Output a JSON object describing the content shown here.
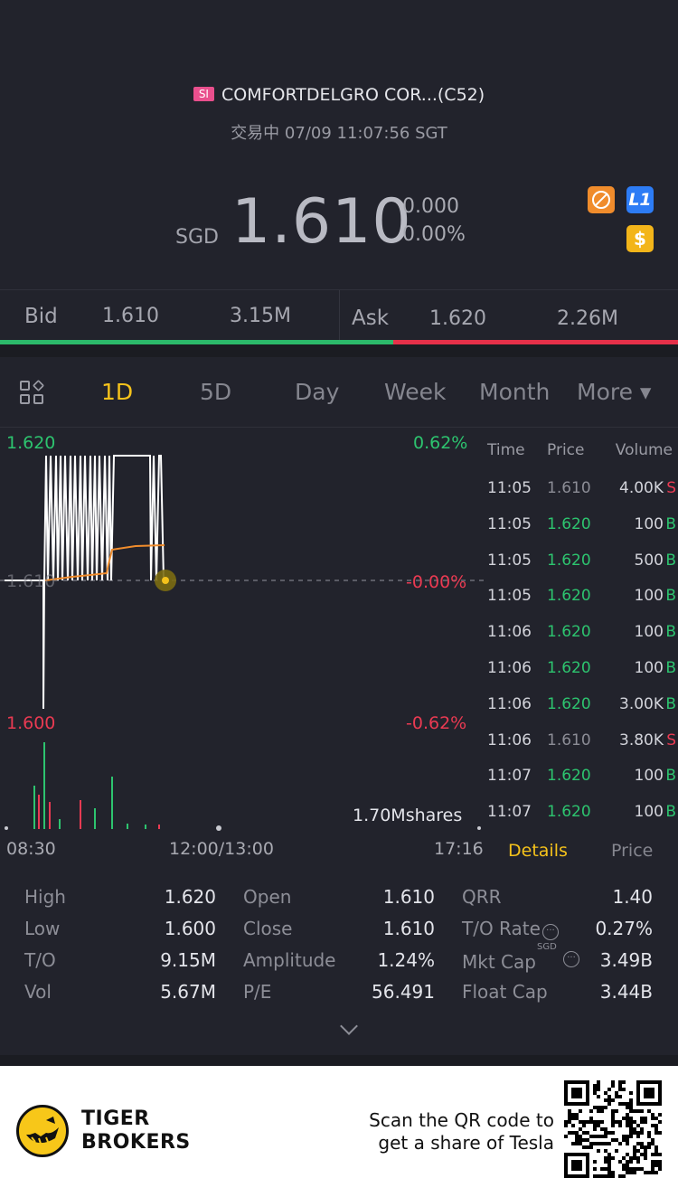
{
  "header": {
    "market_badge": "SI",
    "stock_title": "COMFORTDELGRO COR...(C52)",
    "status": "交易中 07/09 11:07:56 SGT",
    "currency": "SGD",
    "price": "1.610",
    "change": "0.000",
    "change_pct": "0.00%",
    "icons": [
      "no-shorting-icon",
      "level1-icon",
      "dollar-icon"
    ],
    "l1_label": "L1",
    "dollar_label": "$"
  },
  "bidask": {
    "bid_label": "Bid",
    "bid_price": "1.610",
    "bid_size": "3.15M",
    "ask_label": "Ask",
    "ask_price": "1.620",
    "ask_size": "2.26M",
    "bid_ratio": 0.58
  },
  "tabs": [
    "1D",
    "5D",
    "Day",
    "Week",
    "Month",
    "More ▾"
  ],
  "chart": {
    "high_price": "1.620",
    "high_pct": "0.62%",
    "mid_price": "1.610",
    "mid_pct": "-0.00%",
    "low_price": "1.600",
    "low_pct": "-0.62%",
    "volume_label": "1.70Mshares",
    "time_start": "08:30",
    "time_mid": "12:00/13:00",
    "time_end": "17:16"
  },
  "trades": {
    "headers": {
      "time": "Time",
      "price": "Price",
      "volume": "Volume"
    },
    "rows": [
      {
        "time": "11:05",
        "price": "1.610",
        "volume": "4.00K",
        "side": "S"
      },
      {
        "time": "11:05",
        "price": "1.620",
        "volume": "100",
        "side": "B"
      },
      {
        "time": "11:05",
        "price": "1.620",
        "volume": "500",
        "side": "B"
      },
      {
        "time": "11:05",
        "price": "1.620",
        "volume": "100",
        "side": "B"
      },
      {
        "time": "11:06",
        "price": "1.620",
        "volume": "100",
        "side": "B"
      },
      {
        "time": "11:06",
        "price": "1.620",
        "volume": "100",
        "side": "B"
      },
      {
        "time": "11:06",
        "price": "1.620",
        "volume": "3.00K",
        "side": "B"
      },
      {
        "time": "11:06",
        "price": "1.610",
        "volume": "3.80K",
        "side": "S"
      },
      {
        "time": "11:07",
        "price": "1.620",
        "volume": "100",
        "side": "B"
      },
      {
        "time": "11:07",
        "price": "1.620",
        "volume": "100",
        "side": "B"
      }
    ],
    "details_label": "Details",
    "price_label": "Price"
  },
  "stats": {
    "high_k": "High",
    "high_v": "1.620",
    "low_k": "Low",
    "low_v": "1.600",
    "to_k": "T/O",
    "to_v": "9.15M",
    "vol_k": "Vol",
    "vol_v": "5.67M",
    "open_k": "Open",
    "open_v": "1.610",
    "close_k": "Close",
    "close_v": "1.610",
    "amp_k": "Amplitude",
    "amp_v": "1.24%",
    "pe_k": "P/E",
    "pe_v": "56.491",
    "qrr_k": "QRR",
    "qrr_v": "1.40",
    "torate_k": "T/O Rate",
    "torate_v": "0.27%",
    "mktcap_k": "Mkt Cap",
    "mktcap_unit": "SGD",
    "mktcap_v": "3.49B",
    "floatcap_k": "Float Cap",
    "floatcap_v": "3.44B"
  },
  "footer": {
    "brand_line1": "TIGER",
    "brand_line2": "BROKERS",
    "promo_line1": "Scan the QR code to",
    "promo_line2": "get a share of Tesla"
  },
  "colors": {
    "up": "#2dc46f",
    "down": "#ea3a52",
    "accent": "#f5c21b",
    "background": "#22232c"
  }
}
